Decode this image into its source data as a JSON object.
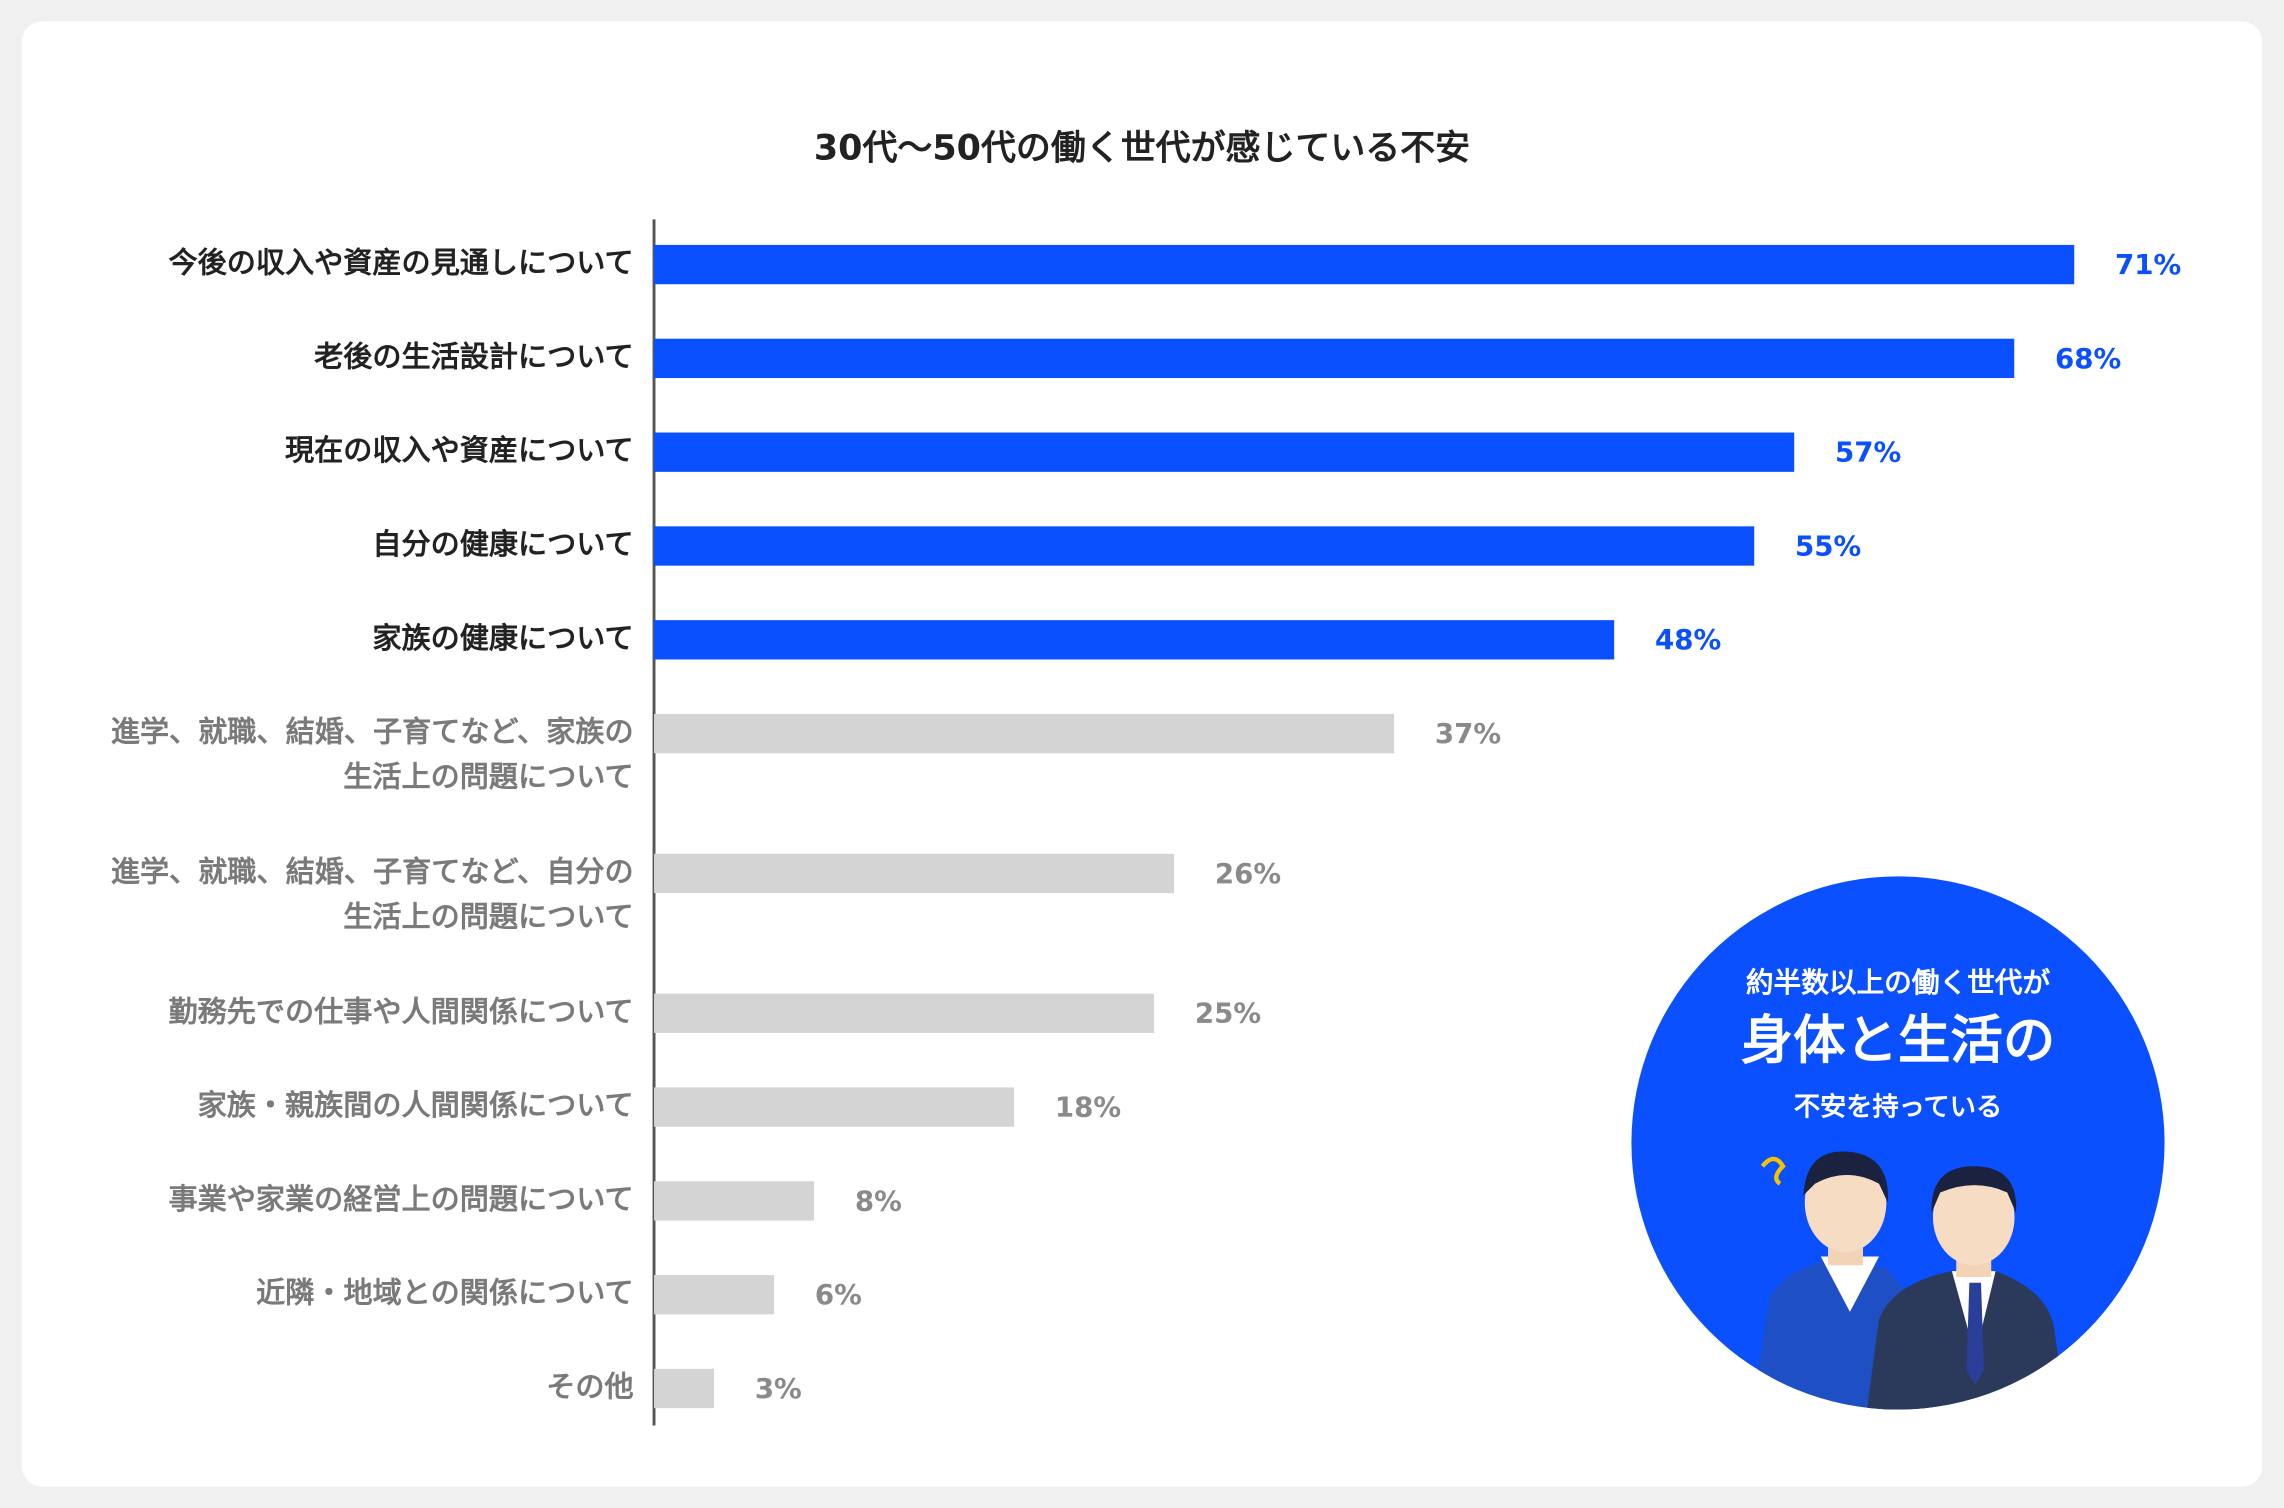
{
  "chart_data": {
    "type": "bar",
    "orientation": "horizontal",
    "title": "30代〜50代の働く世代が感じている不安",
    "categories": [
      "今後の収入や資産の見通しについて",
      "老後の生活設計について",
      "現在の収入や資産について",
      "自分の健康について",
      "家族の健康について",
      "進学、就職、結婚、子育てなど、家族の\n生活上の問題について",
      "進学、就職、結婚、子育てなど、自分の\n生活上の問題について",
      "勤務先での仕事や人間関係について",
      "家族・親族間の人間関係について",
      "事業や家業の経営上の問題について",
      "近隣・地域との関係について",
      "その他"
    ],
    "values": [
      71,
      68,
      57,
      55,
      48,
      37,
      26,
      25,
      18,
      8,
      6,
      3
    ],
    "value_labels": [
      "71%",
      "68%",
      "57%",
      "55%",
      "48%",
      "37%",
      "26%",
      "25%",
      "18%",
      "8%",
      "6%",
      "3%"
    ],
    "colors": [
      "#0a50ff",
      "#0a50ff",
      "#0a50ff",
      "#0a50ff",
      "#0a50ff",
      "#d4d4d4",
      "#d4d4d4",
      "#d4d4d4",
      "#d4d4d4",
      "#d4d4d4",
      "#d4d4d4",
      "#d4d4d4"
    ],
    "callout": {
      "line1": "約半数以上の働く世代が",
      "line2": "身体と生活の",
      "line3": "不安を持っている"
    }
  }
}
